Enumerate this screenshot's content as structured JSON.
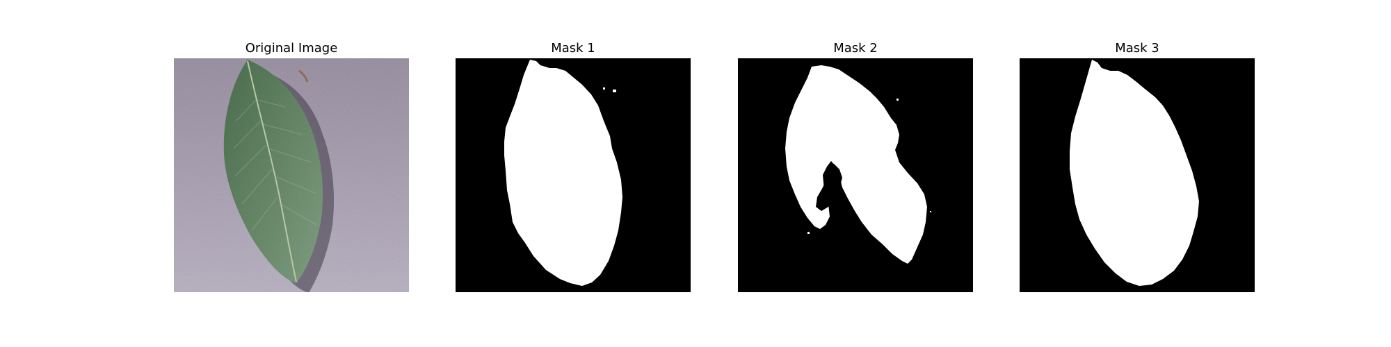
{
  "figure": {
    "panels": [
      {
        "title": "Original Image"
      },
      {
        "title": "Mask 1"
      },
      {
        "title": "Mask 2"
      },
      {
        "title": "Mask 3"
      }
    ]
  },
  "colors": {
    "background": "#ffffff",
    "mask_background": "#000000",
    "mask_foreground": "#ffffff",
    "leaf_green": "#5f8063",
    "surface_lilac": "#aaa3b3"
  }
}
